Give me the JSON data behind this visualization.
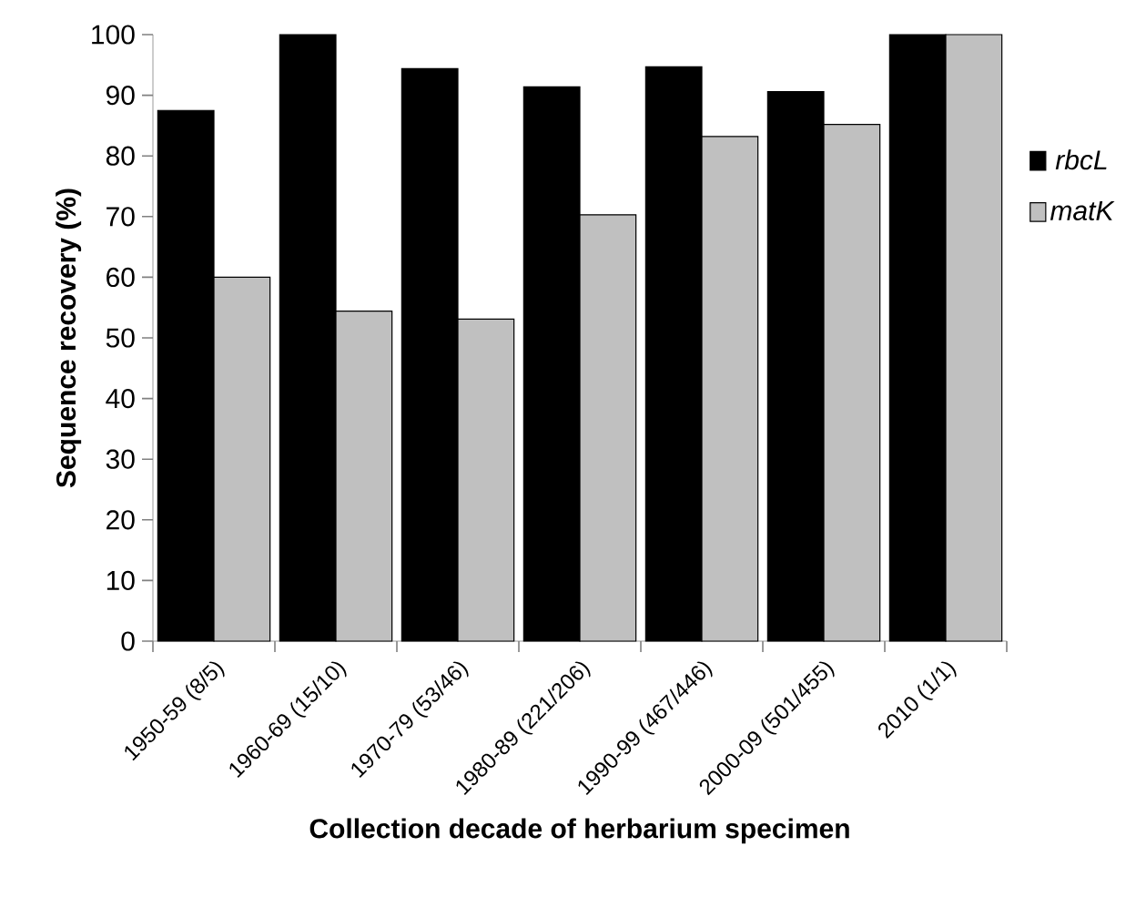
{
  "chart_data": {
    "type": "bar",
    "xlabel": "Collection decade of herbarium specimen",
    "ylabel": "Sequence recovery (%)",
    "categories": [
      "1950-59 (8/5)",
      "1960-69 (15/10)",
      "1970-79 (53/46)",
      "1980-89 (221/206)",
      "1990-99 (467/446)",
      "2000-09 (501/455)",
      "2010 (1/1)"
    ],
    "series": [
      {
        "name": "rbcL",
        "color": "#000000",
        "values": [
          87.5,
          100,
          94.4,
          91.4,
          94.7,
          90.6,
          100
        ]
      },
      {
        "name": "matK",
        "color": "#c0c0c0",
        "values": [
          60.0,
          54.4,
          53.1,
          70.3,
          83.2,
          85.2,
          100
        ]
      }
    ],
    "ylim": [
      0,
      100
    ],
    "yticks": [
      0,
      10,
      20,
      30,
      40,
      50,
      60,
      70,
      80,
      90,
      100
    ],
    "grid": false,
    "legend": "right"
  }
}
